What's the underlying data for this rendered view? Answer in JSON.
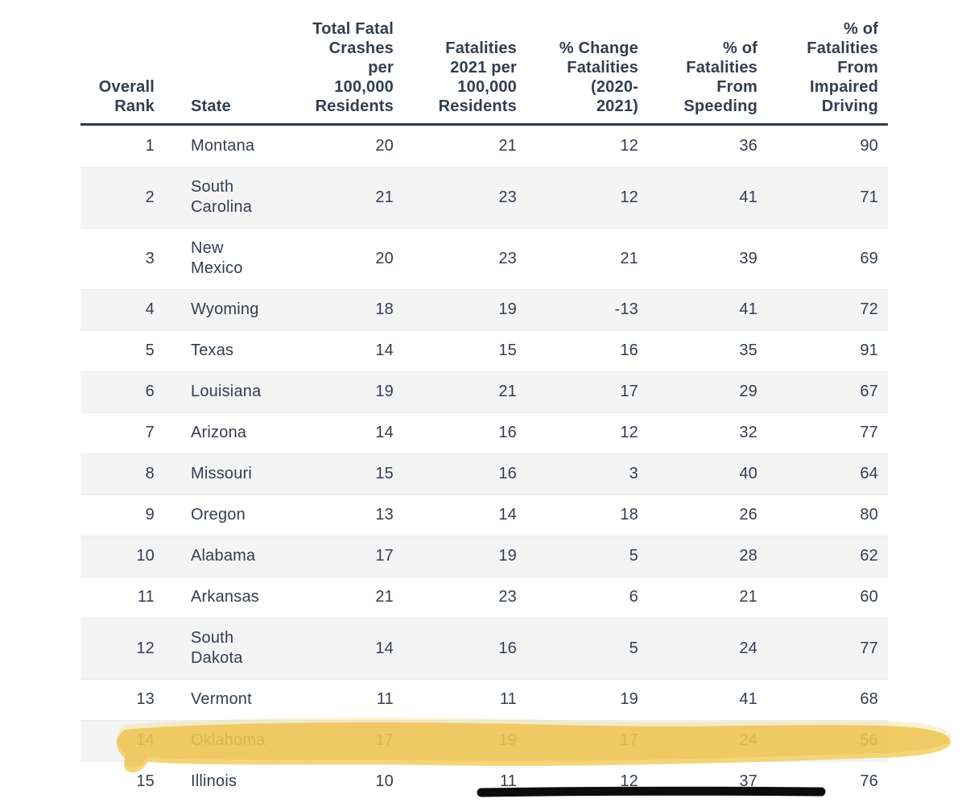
{
  "colors": {
    "text": "#333e4e",
    "header_rule": "#2f3949",
    "row_alt": "#f4f4f5",
    "row_divider": "#ececee",
    "highlight": "#f2cf62",
    "marker_line": "#0c0c0c",
    "background": "#ffffff"
  },
  "table": {
    "headers": {
      "rank": "Overall\nRank",
      "state": "State",
      "crashes": "Total Fatal\nCrashes\nper\n100,000\nResidents",
      "fatalities": "Fatalities\n2021 per\n100,000\nResidents",
      "change": "% Change\nFatalities\n(2020-\n2021)",
      "speeding": "% of\nFatalities\nFrom\nSpeeding",
      "impaired": "% of\nFatalities\nFrom\nImpaired\nDriving"
    },
    "rows": [
      {
        "rank": 1,
        "state": "Montana",
        "crashes": 20,
        "fatalities": 21,
        "change": 12,
        "speeding": 36,
        "impaired": 90
      },
      {
        "rank": 2,
        "state": "South Carolina",
        "crashes": 21,
        "fatalities": 23,
        "change": 12,
        "speeding": 41,
        "impaired": 71
      },
      {
        "rank": 3,
        "state": "New Mexico",
        "crashes": 20,
        "fatalities": 23,
        "change": 21,
        "speeding": 39,
        "impaired": 69
      },
      {
        "rank": 4,
        "state": "Wyoming",
        "crashes": 18,
        "fatalities": 19,
        "change": -13,
        "speeding": 41,
        "impaired": 72
      },
      {
        "rank": 5,
        "state": "Texas",
        "crashes": 14,
        "fatalities": 15,
        "change": 16,
        "speeding": 35,
        "impaired": 91
      },
      {
        "rank": 6,
        "state": "Louisiana",
        "crashes": 19,
        "fatalities": 21,
        "change": 17,
        "speeding": 29,
        "impaired": 67
      },
      {
        "rank": 7,
        "state": "Arizona",
        "crashes": 14,
        "fatalities": 16,
        "change": 12,
        "speeding": 32,
        "impaired": 77
      },
      {
        "rank": 8,
        "state": "Missouri",
        "crashes": 15,
        "fatalities": 16,
        "change": 3,
        "speeding": 40,
        "impaired": 64
      },
      {
        "rank": 9,
        "state": "Oregon",
        "crashes": 13,
        "fatalities": 14,
        "change": 18,
        "speeding": 26,
        "impaired": 80
      },
      {
        "rank": 10,
        "state": "Alabama",
        "crashes": 17,
        "fatalities": 19,
        "change": 5,
        "speeding": 28,
        "impaired": 62
      },
      {
        "rank": 11,
        "state": "Arkansas",
        "crashes": 21,
        "fatalities": 23,
        "change": 6,
        "speeding": 21,
        "impaired": 60
      },
      {
        "rank": 12,
        "state": "South Dakota",
        "crashes": 14,
        "fatalities": 16,
        "change": 5,
        "speeding": 24,
        "impaired": 77
      },
      {
        "rank": 13,
        "state": "Vermont",
        "crashes": 11,
        "fatalities": 11,
        "change": 19,
        "speeding": 41,
        "impaired": 68
      },
      {
        "rank": 14,
        "state": "Oklahoma",
        "crashes": 17,
        "fatalities": 19,
        "change": 17,
        "speeding": 24,
        "impaired": 56
      },
      {
        "rank": 15,
        "state": "Illinois",
        "crashes": 10,
        "fatalities": 11,
        "change": 12,
        "speeding": 37,
        "impaired": 76
      }
    ]
  },
  "annotations": {
    "highlight_marker": {
      "style": "hand-drawn highlighter stroke",
      "row_state": "Oklahoma",
      "row_rank": 14,
      "color": "#f2cf62"
    },
    "underline_marker": {
      "style": "thick hand-drawn line",
      "row_state": "Illinois",
      "row_rank": 15,
      "color": "#0c0c0c"
    }
  },
  "chart_data": {
    "type": "table",
    "title": "",
    "columns": [
      "Overall Rank",
      "State",
      "Total Fatal Crashes per 100,000 Residents",
      "Fatalities 2021 per 100,000 Residents",
      "% Change Fatalities (2020-2021)",
      "% of Fatalities From Speeding",
      "% of Fatalities From Impaired Driving"
    ],
    "rows": [
      [
        1,
        "Montana",
        20,
        21,
        12,
        36,
        90
      ],
      [
        2,
        "South Carolina",
        21,
        23,
        12,
        41,
        71
      ],
      [
        3,
        "New Mexico",
        20,
        23,
        21,
        39,
        69
      ],
      [
        4,
        "Wyoming",
        18,
        19,
        -13,
        41,
        72
      ],
      [
        5,
        "Texas",
        14,
        15,
        16,
        35,
        91
      ],
      [
        6,
        "Louisiana",
        19,
        21,
        17,
        29,
        67
      ],
      [
        7,
        "Arizona",
        14,
        16,
        12,
        32,
        77
      ],
      [
        8,
        "Missouri",
        15,
        16,
        3,
        40,
        64
      ],
      [
        9,
        "Oregon",
        13,
        14,
        18,
        26,
        80
      ],
      [
        10,
        "Alabama",
        17,
        19,
        5,
        28,
        62
      ],
      [
        11,
        "Arkansas",
        21,
        23,
        6,
        21,
        60
      ],
      [
        12,
        "South Dakota",
        14,
        16,
        5,
        24,
        77
      ],
      [
        13,
        "Vermont",
        11,
        11,
        19,
        41,
        68
      ],
      [
        14,
        "Oklahoma",
        17,
        19,
        17,
        24,
        56
      ],
      [
        15,
        "Illinois",
        10,
        11,
        12,
        37,
        76
      ]
    ],
    "highlighted_row": "Oklahoma (rank 14)",
    "layout_hints": "striped rows, thick rule under header, numeric columns right-aligned"
  }
}
